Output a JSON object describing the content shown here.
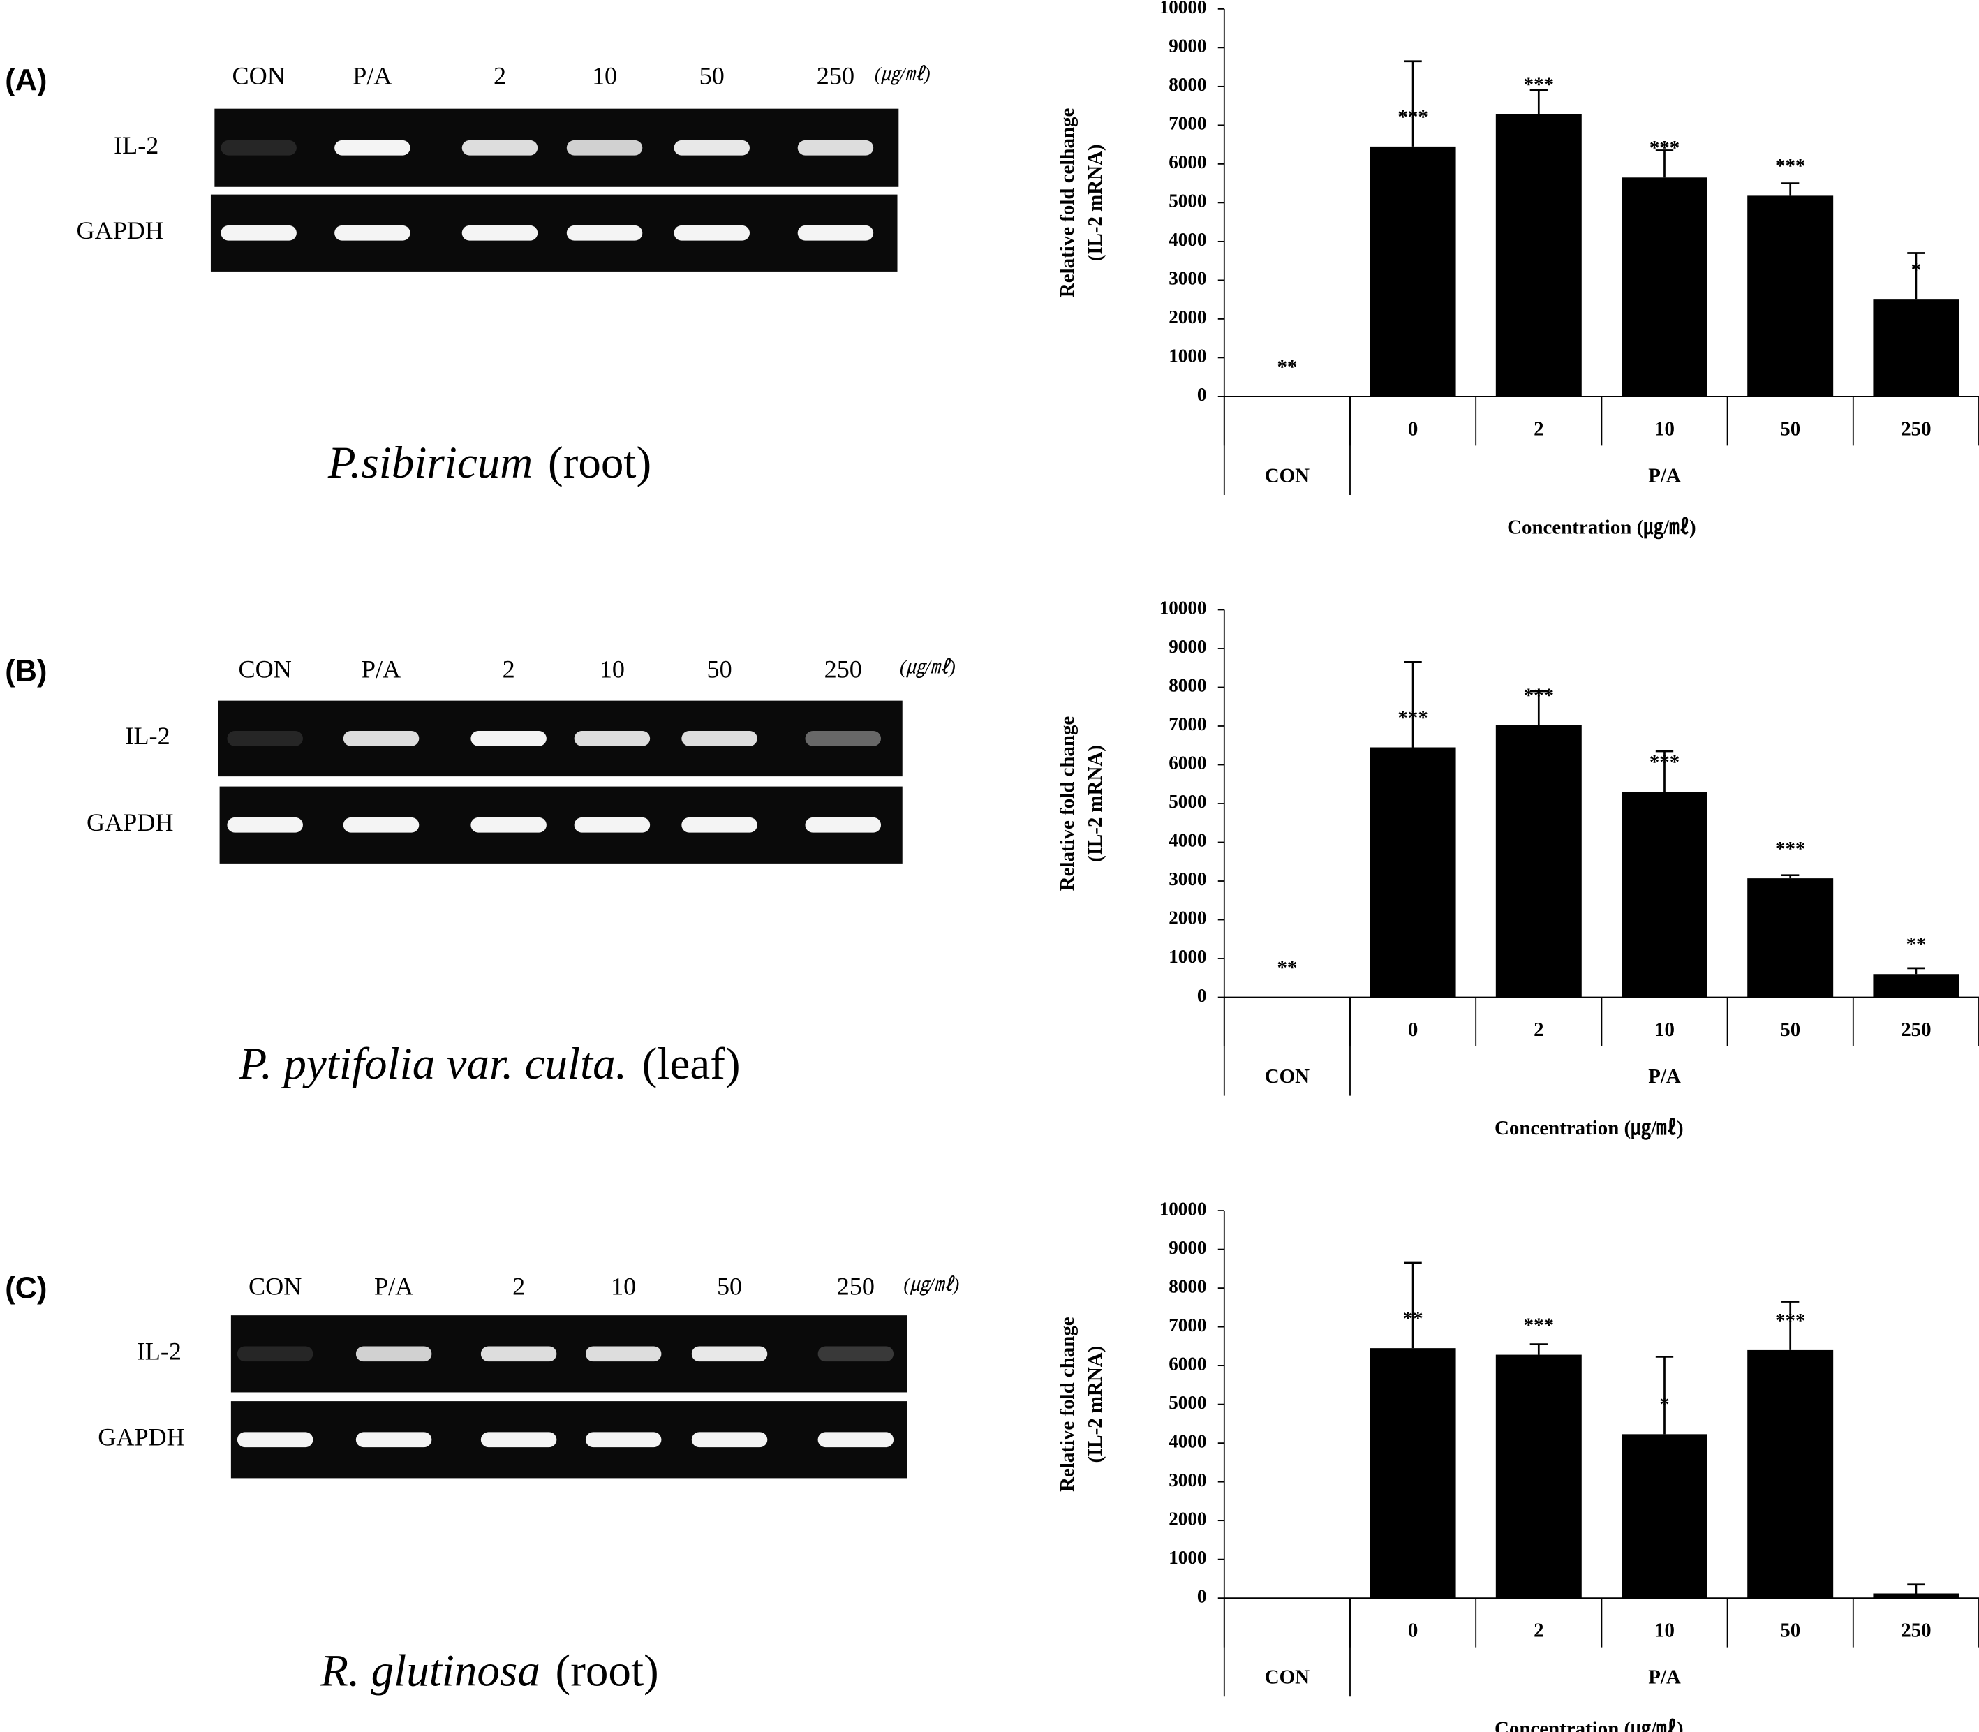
{
  "panels": [
    {
      "letter": "(A)",
      "lanes": [
        "CON",
        "P/A",
        "2",
        "10",
        "50",
        "250"
      ],
      "unit": "(㎍/㎖)",
      "rows": [
        "IL-2",
        "GAPDH"
      ],
      "caption": {
        "species": "P.sibiricum",
        "part": "(root)"
      }
    },
    {
      "letter": "(B)",
      "lanes": [
        "CON",
        "P/A",
        "2",
        "10",
        "50",
        "250"
      ],
      "unit": "(㎍/㎖)",
      "rows": [
        "IL-2",
        "GAPDH"
      ],
      "caption": {
        "species": "P. pytifolia var. culta.",
        "part": "(leaf)"
      }
    },
    {
      "letter": "(C)",
      "lanes": [
        "CON",
        "P/A",
        "2",
        "10",
        "50",
        "250"
      ],
      "unit": "(㎍/㎖)",
      "rows": [
        "IL-2",
        "GAPDH"
      ],
      "caption": {
        "species": "R. glutinosa",
        "part": "(root)"
      }
    }
  ],
  "chart_data": [
    {
      "type": "bar",
      "ylabel": [
        "Relative fold celhange",
        "(IL-2 mRNA)"
      ],
      "xlabel": "Concentration (㎍/㎖)",
      "categories": [
        null,
        "0",
        "2",
        "10",
        "50",
        "250"
      ],
      "groups": [
        {
          "label": "CON",
          "size": 1
        },
        {
          "label": "P/A",
          "size": 5
        }
      ],
      "values": [
        0,
        6450,
        7280,
        5650,
        5180,
        2500
      ],
      "errors": [
        null,
        2200,
        620,
        700,
        320,
        1200
      ],
      "significance": [
        "**",
        "***",
        "***",
        "***",
        "***",
        "*"
      ],
      "color": "#000000",
      "ylim": [
        0,
        10000
      ],
      "yticks": [
        0,
        1000,
        2000,
        3000,
        4000,
        5000,
        6000,
        7000,
        8000,
        9000,
        10000
      ]
    },
    {
      "type": "bar",
      "ylabel": [
        "Relative fold change",
        "(IL-2 mRNA)"
      ],
      "xlabel": "Concentration (㎍/㎖)",
      "categories": [
        null,
        "0",
        "2",
        "10",
        "50",
        "250"
      ],
      "groups": [
        {
          "label": "CON",
          "size": 1
        },
        {
          "label": "P/A",
          "size": 5
        }
      ],
      "values": [
        0,
        6450,
        7020,
        5300,
        3070,
        600
      ],
      "errors": [
        null,
        2200,
        880,
        1050,
        80,
        150
      ],
      "significance": [
        "**",
        "***",
        "***",
        "***",
        "***",
        "**"
      ],
      "color": "#000000",
      "ylim": [
        0,
        10000
      ],
      "yticks": [
        0,
        1000,
        2000,
        3000,
        4000,
        5000,
        6000,
        7000,
        8000,
        9000,
        10000
      ]
    },
    {
      "type": "bar",
      "ylabel": [
        "Relative fold change",
        "(IL-2 mRNA)"
      ],
      "xlabel": "Concentration (㎍/㎖)",
      "categories": [
        null,
        "0",
        "2",
        "10",
        "50",
        "250"
      ],
      "groups": [
        {
          "label": "CON",
          "size": 1
        },
        {
          "label": "P/A",
          "size": 5
        }
      ],
      "values": [
        0,
        6450,
        6280,
        4230,
        6400,
        120
      ],
      "errors": [
        null,
        2200,
        270,
        2000,
        1250,
        230
      ],
      "significance": [
        null,
        "**",
        "***",
        "*",
        "***",
        null
      ],
      "color": "#000000",
      "ylim": [
        0,
        10000
      ],
      "yticks": [
        0,
        1000,
        2000,
        3000,
        4000,
        5000,
        6000,
        7000,
        8000,
        9000,
        10000
      ]
    }
  ]
}
